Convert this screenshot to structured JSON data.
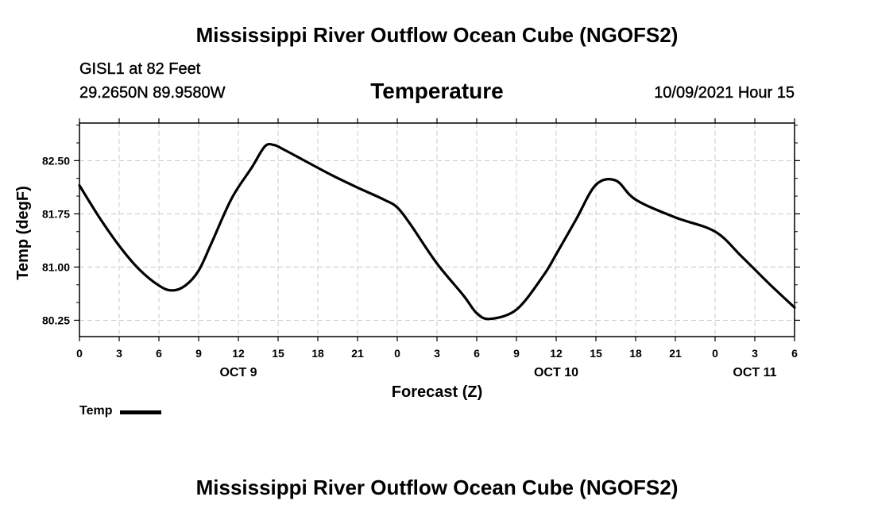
{
  "header": {
    "main_title": "Mississippi River Outflow Ocean Cube (NGOFS2)",
    "station_label": "GISL1 at 82 Feet",
    "coordinates": "29.2650N  89.9580W",
    "datetime": "10/09/2021 Hour 15"
  },
  "footer": {
    "title": "Mississippi River Outflow Ocean Cube (NGOFS2)"
  },
  "chart_data": {
    "type": "line",
    "title": "Temperature",
    "xlabel": "Forecast (Z)",
    "ylabel": "Temp (degF)",
    "xlim": [
      0,
      54
    ],
    "ylim": [
      80.02,
      83.03
    ],
    "xticks": [
      0,
      3,
      6,
      9,
      12,
      15,
      18,
      21,
      24,
      27,
      30,
      33,
      36,
      39,
      42,
      45,
      48,
      51,
      54
    ],
    "xtick_labels": [
      "0",
      "3",
      "6",
      "9",
      "12",
      "15",
      "18",
      "21",
      "0",
      "3",
      "6",
      "9",
      "12",
      "15",
      "18",
      "21",
      "0",
      "3",
      "6"
    ],
    "yticks": [
      80.25,
      81.0,
      81.75,
      82.5
    ],
    "ytick_labels": [
      "80.25",
      "81.00",
      "81.75",
      "82.50"
    ],
    "day_labels": [
      {
        "x": 12,
        "label": "OCT 9"
      },
      {
        "x": 36,
        "label": "OCT 10"
      },
      {
        "x": 51,
        "label": "OCT 11"
      }
    ],
    "grid": true,
    "legend": {
      "label": "Temp",
      "position": "bottom-left"
    },
    "series": [
      {
        "name": "Temp",
        "color": "#000000",
        "x": [
          0,
          1.5,
          3,
          4.5,
          6,
          7,
          8,
          9,
          10,
          11.5,
          13,
          14,
          14.7,
          15.5,
          17,
          19,
          21,
          23,
          24,
          25,
          27,
          29,
          30,
          31,
          33,
          35,
          36,
          37.5,
          39,
          40.5,
          42,
          45,
          48,
          50,
          52,
          54
        ],
        "y": [
          82.15,
          81.7,
          81.3,
          80.97,
          80.74,
          80.67,
          80.74,
          80.95,
          81.35,
          81.97,
          82.4,
          82.7,
          82.72,
          82.65,
          82.5,
          82.3,
          82.12,
          81.95,
          81.84,
          81.6,
          81.05,
          80.6,
          80.35,
          80.27,
          80.4,
          80.87,
          81.18,
          81.67,
          82.16,
          82.22,
          81.95,
          81.7,
          81.5,
          81.15,
          80.78,
          80.43
        ]
      }
    ]
  }
}
